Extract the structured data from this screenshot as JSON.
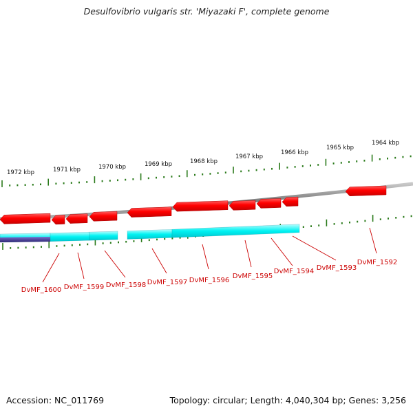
{
  "title": "Desulfovibrio vulgaris str. 'Miyazaki F', complete genome",
  "footer": {
    "accession": "Accession: NC_011769",
    "genome_info": "Topology: circular; Length: 4,040,304 bp; Genes: 3,256"
  },
  "scale": {
    "labels": [
      "1972 kbp",
      "1971 kbp",
      "1970 kbp",
      "1969 kbp",
      "1968 kbp",
      "1967 kbp",
      "1966 kbp",
      "1965 kbp",
      "1964 kbp"
    ]
  },
  "genes": [
    "DvMF_1600",
    "DvMF_1599",
    "DvMF_1598",
    "DvMF_1597",
    "DvMF_1596",
    "DvMF_1595",
    "DvMF_1594",
    "DvMF_1593",
    "DvMF_1592"
  ],
  "colors": {
    "gene_reverse": "#ff0000",
    "gene_forward": "#00f0f0",
    "backbone": "#888888",
    "tick": "#2a7a1a",
    "label": "#cc0000",
    "contig": "#4a3fa0"
  }
}
